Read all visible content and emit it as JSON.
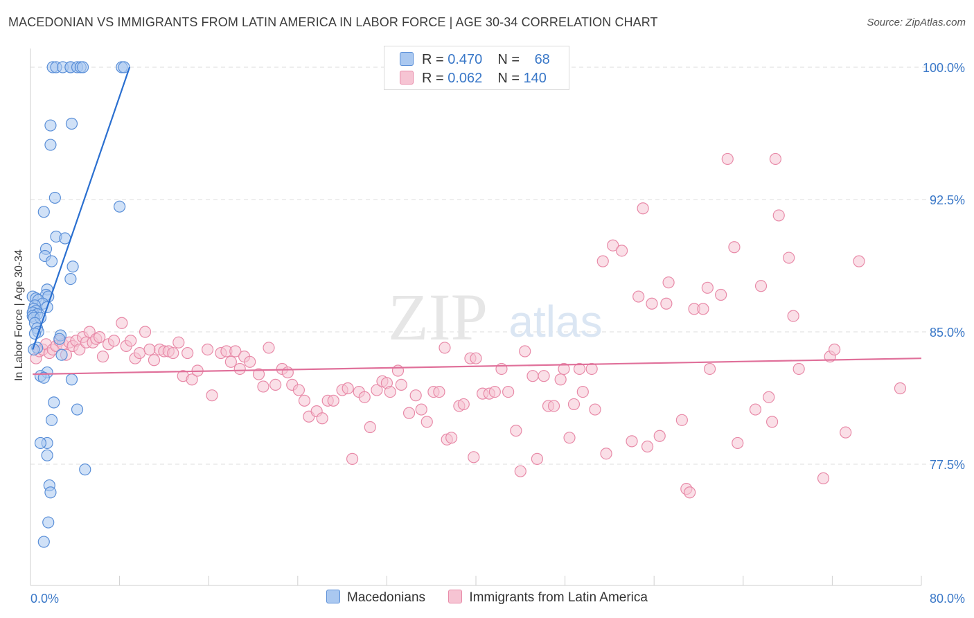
{
  "title": "MACEDONIAN VS IMMIGRANTS FROM LATIN AMERICA IN LABOR FORCE | AGE 30-34 CORRELATION CHART",
  "source": "Source: ZipAtlas.com",
  "watermark": {
    "zip": "ZIP",
    "atlas": "atlas"
  },
  "legend_top": [
    {
      "r_label": "R = ",
      "r_value": "0.470",
      "n_label": "N = ",
      "n_value": "68"
    },
    {
      "r_label": "R = ",
      "r_value": "0.062",
      "n_label": "N = ",
      "n_value": "140"
    }
  ],
  "colors": {
    "blue_fill": "#aac8f0",
    "blue_stroke": "#5a8fd8",
    "blue_line": "#2a6fd0",
    "pink_fill": "#f6c4d3",
    "pink_stroke": "#e88aa8",
    "pink_line": "#e0709a",
    "tick_label": "#3a78c8",
    "grid": "#dcdcdc"
  },
  "chart_data": {
    "type": "scatter",
    "title": "MACEDONIAN VS IMMIGRANTS FROM LATIN AMERICA IN LABOR FORCE | AGE 30-34 CORRELATION CHART",
    "xlabel": "",
    "ylabel": "In Labor Force | Age 30-34",
    "xlim": [
      0,
      80
    ],
    "ylim": [
      71,
      101
    ],
    "x_tick_labels": [
      "0.0%",
      "80.0%"
    ],
    "y_ticks": [
      77.5,
      85.0,
      92.5,
      100.0
    ],
    "y_tick_labels": [
      "77.5%",
      "85.0%",
      "92.5%",
      "100.0%"
    ],
    "grid": true,
    "series": [
      {
        "name": "Macedonians",
        "r": 0.47,
        "n": 68,
        "trend": {
          "x": [
            0.2,
            8.9
          ],
          "y": [
            84.0,
            100.0
          ]
        },
        "points": [
          [
            2.0,
            100.0
          ],
          [
            2.3,
            100.0
          ],
          [
            2.9,
            100.0
          ],
          [
            3.6,
            100.0
          ],
          [
            3.6,
            100.0
          ],
          [
            4.2,
            100.0
          ],
          [
            4.5,
            100.0
          ],
          [
            4.7,
            100.0
          ],
          [
            8.2,
            100.0
          ],
          [
            8.4,
            100.0
          ],
          [
            1.8,
            96.7
          ],
          [
            3.7,
            96.8
          ],
          [
            1.8,
            95.6
          ],
          [
            2.2,
            92.6
          ],
          [
            8.0,
            92.1
          ],
          [
            1.2,
            91.8
          ],
          [
            2.3,
            90.4
          ],
          [
            3.1,
            90.3
          ],
          [
            1.4,
            89.7
          ],
          [
            1.3,
            89.3
          ],
          [
            1.9,
            89.0
          ],
          [
            3.8,
            88.7
          ],
          [
            3.6,
            88.0
          ],
          [
            1.5,
            87.4
          ],
          [
            1.4,
            87.1
          ],
          [
            1.6,
            87.0
          ],
          [
            0.2,
            87.0
          ],
          [
            0.5,
            86.9
          ],
          [
            0.7,
            86.8
          ],
          [
            1.1,
            86.6
          ],
          [
            0.4,
            86.5
          ],
          [
            1.5,
            86.4
          ],
          [
            0.3,
            86.3
          ],
          [
            0.5,
            86.2
          ],
          [
            0.2,
            86.1
          ],
          [
            0.6,
            86.0
          ],
          [
            0.2,
            85.9
          ],
          [
            0.3,
            85.8
          ],
          [
            0.9,
            85.8
          ],
          [
            0.4,
            85.5
          ],
          [
            0.6,
            85.2
          ],
          [
            0.7,
            85.0
          ],
          [
            0.4,
            84.9
          ],
          [
            2.7,
            84.8
          ],
          [
            2.6,
            84.6
          ],
          [
            0.6,
            84.1
          ],
          [
            0.3,
            84.0
          ],
          [
            2.8,
            83.7
          ],
          [
            1.5,
            82.7
          ],
          [
            0.9,
            82.5
          ],
          [
            1.2,
            82.4
          ],
          [
            3.7,
            82.3
          ],
          [
            2.1,
            81.0
          ],
          [
            4.2,
            80.6
          ],
          [
            1.9,
            80.0
          ],
          [
            1.5,
            78.7
          ],
          [
            0.9,
            78.7
          ],
          [
            1.5,
            78.0
          ],
          [
            4.9,
            77.2
          ],
          [
            1.7,
            76.3
          ],
          [
            1.8,
            75.9
          ],
          [
            1.6,
            74.2
          ],
          [
            1.2,
            73.1
          ]
        ]
      },
      {
        "name": "Immigrants from Latin America",
        "r": 0.062,
        "n": 140,
        "trend": {
          "x": [
            0.2,
            80.0
          ],
          "y": [
            82.6,
            83.5
          ]
        },
        "points": [
          [
            0.5,
            83.5
          ],
          [
            0.8,
            83.9
          ],
          [
            1.1,
            84.0
          ],
          [
            1.4,
            84.3
          ],
          [
            1.7,
            83.8
          ],
          [
            2.0,
            84.0
          ],
          [
            2.3,
            84.2
          ],
          [
            2.6,
            84.5
          ],
          [
            2.9,
            84.3
          ],
          [
            3.2,
            83.7
          ],
          [
            3.5,
            84.4
          ],
          [
            3.8,
            84.2
          ],
          [
            4.1,
            84.5
          ],
          [
            4.4,
            84.0
          ],
          [
            4.7,
            84.7
          ],
          [
            5.0,
            84.4
          ],
          [
            5.3,
            85.0
          ],
          [
            5.6,
            84.4
          ],
          [
            5.9,
            84.6
          ],
          [
            6.2,
            84.7
          ],
          [
            6.5,
            83.6
          ],
          [
            7.0,
            84.3
          ],
          [
            7.5,
            84.5
          ],
          [
            8.2,
            85.5
          ],
          [
            8.6,
            84.2
          ],
          [
            9.0,
            84.5
          ],
          [
            9.4,
            83.5
          ],
          [
            9.8,
            83.8
          ],
          [
            10.3,
            85.0
          ],
          [
            10.7,
            84.0
          ],
          [
            11.1,
            83.4
          ],
          [
            11.6,
            84.0
          ],
          [
            12.0,
            83.9
          ],
          [
            12.4,
            83.9
          ],
          [
            12.8,
            83.8
          ],
          [
            13.3,
            84.4
          ],
          [
            13.7,
            82.5
          ],
          [
            14.1,
            83.8
          ],
          [
            14.5,
            82.3
          ],
          [
            15.0,
            82.8
          ],
          [
            15.9,
            84.0
          ],
          [
            16.3,
            81.4
          ],
          [
            17.1,
            83.8
          ],
          [
            17.6,
            83.9
          ],
          [
            18.0,
            83.3
          ],
          [
            18.4,
            83.9
          ],
          [
            18.8,
            82.9
          ],
          [
            19.2,
            83.6
          ],
          [
            19.7,
            83.3
          ],
          [
            20.5,
            82.6
          ],
          [
            20.9,
            81.9
          ],
          [
            21.4,
            84.1
          ],
          [
            22.0,
            82.0
          ],
          [
            22.6,
            82.9
          ],
          [
            23.1,
            82.7
          ],
          [
            23.5,
            82.0
          ],
          [
            24.1,
            81.7
          ],
          [
            24.6,
            81.1
          ],
          [
            25.0,
            80.2
          ],
          [
            25.7,
            80.5
          ],
          [
            26.2,
            80.1
          ],
          [
            26.7,
            81.1
          ],
          [
            27.2,
            81.1
          ],
          [
            28.0,
            81.7
          ],
          [
            28.5,
            81.8
          ],
          [
            28.9,
            77.8
          ],
          [
            29.5,
            81.6
          ],
          [
            30.0,
            81.3
          ],
          [
            30.5,
            79.6
          ],
          [
            31.1,
            81.7
          ],
          [
            31.6,
            82.2
          ],
          [
            32.0,
            82.1
          ],
          [
            32.3,
            81.6
          ],
          [
            33.0,
            82.8
          ],
          [
            33.3,
            82.0
          ],
          [
            34.0,
            80.4
          ],
          [
            34.6,
            81.4
          ],
          [
            35.1,
            80.6
          ],
          [
            35.6,
            79.9
          ],
          [
            36.2,
            81.6
          ],
          [
            36.7,
            81.6
          ],
          [
            37.2,
            84.1
          ],
          [
            37.4,
            78.9
          ],
          [
            37.8,
            79.0
          ],
          [
            38.5,
            80.8
          ],
          [
            38.9,
            80.9
          ],
          [
            39.5,
            83.5
          ],
          [
            39.8,
            77.9
          ],
          [
            40.0,
            83.5
          ],
          [
            40.6,
            81.5
          ],
          [
            41.2,
            81.5
          ],
          [
            41.7,
            81.6
          ],
          [
            42.3,
            82.9
          ],
          [
            42.9,
            81.6
          ],
          [
            43.6,
            79.4
          ],
          [
            44.0,
            77.1
          ],
          [
            44.4,
            83.9
          ],
          [
            45.1,
            82.5
          ],
          [
            45.5,
            77.8
          ],
          [
            46.1,
            82.5
          ],
          [
            46.5,
            80.8
          ],
          [
            47.0,
            80.8
          ],
          [
            47.6,
            82.3
          ],
          [
            47.9,
            82.9
          ],
          [
            48.4,
            79.0
          ],
          [
            48.8,
            80.9
          ],
          [
            49.3,
            82.9
          ],
          [
            49.6,
            81.6
          ],
          [
            50.4,
            82.9
          ],
          [
            50.7,
            80.6
          ],
          [
            51.4,
            89.0
          ],
          [
            51.7,
            78.1
          ],
          [
            52.3,
            89.9
          ],
          [
            53.1,
            89.6
          ],
          [
            54.0,
            78.8
          ],
          [
            54.6,
            87.0
          ],
          [
            55.0,
            92.0
          ],
          [
            55.4,
            78.5
          ],
          [
            55.8,
            86.6
          ],
          [
            56.5,
            79.1
          ],
          [
            57.1,
            86.6
          ],
          [
            57.3,
            87.8
          ],
          [
            58.5,
            80.0
          ],
          [
            58.9,
            76.1
          ],
          [
            59.2,
            75.9
          ],
          [
            59.6,
            86.3
          ],
          [
            60.4,
            86.3
          ],
          [
            60.8,
            87.5
          ],
          [
            61.0,
            82.9
          ],
          [
            62.0,
            87.1
          ],
          [
            62.6,
            94.8
          ],
          [
            63.2,
            89.8
          ],
          [
            63.5,
            78.7
          ],
          [
            65.1,
            80.6
          ],
          [
            65.6,
            87.6
          ],
          [
            66.3,
            81.3
          ],
          [
            66.6,
            79.9
          ],
          [
            66.9,
            94.8
          ],
          [
            67.2,
            91.6
          ],
          [
            68.1,
            89.2
          ],
          [
            68.5,
            85.9
          ],
          [
            69.0,
            82.9
          ],
          [
            71.2,
            76.7
          ],
          [
            71.8,
            83.6
          ],
          [
            72.2,
            84.0
          ],
          [
            73.2,
            79.3
          ],
          [
            74.4,
            89.0
          ],
          [
            78.1,
            81.8
          ]
        ]
      }
    ]
  },
  "legend_bottom": [
    "Macedonians",
    "Immigrants from Latin America"
  ]
}
